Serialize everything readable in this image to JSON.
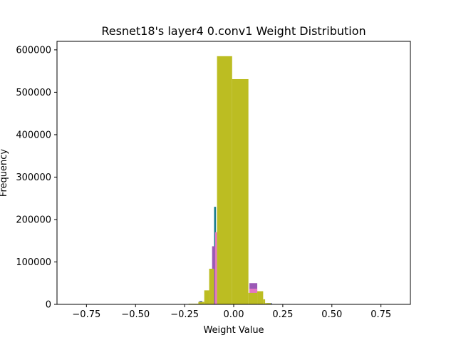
{
  "chart_data": {
    "type": "bar",
    "title": "Resnet18's layer4 0.conv1 Weight Distribution",
    "xlabel": "Weight Value",
    "ylabel": "Frequency",
    "xlim": [
      -0.9,
      0.9
    ],
    "ylim": [
      0,
      620000
    ],
    "xticks": [
      -0.75,
      -0.5,
      -0.25,
      0.0,
      0.25,
      0.5,
      0.75
    ],
    "xtick_labels": [
      "−0.75",
      "−0.50",
      "−0.25",
      "0.00",
      "0.25",
      "0.50",
      "0.75"
    ],
    "yticks": [
      0,
      100000,
      200000,
      300000,
      400000,
      500000,
      600000
    ],
    "ytick_labels": [
      "0",
      "100000",
      "200000",
      "300000",
      "400000",
      "500000",
      "600000"
    ],
    "grid": false,
    "legend": "none",
    "series": [
      {
        "color": "#4a5fc1",
        "bins": [
          {
            "x0": -0.175,
            "x1": -0.16,
            "value": 8000
          },
          {
            "x0": 0.17,
            "x1": 0.195,
            "value": 3000
          }
        ]
      },
      {
        "color": "#1f7f8f",
        "bins": [
          {
            "x0": -0.1,
            "x1": -0.09,
            "value": 230000
          }
        ]
      },
      {
        "color": "#9b59b6",
        "bins": [
          {
            "x0": -0.11,
            "x1": -0.095,
            "value": 137000
          },
          {
            "x0": 0.08,
            "x1": 0.12,
            "value": 50000
          }
        ]
      },
      {
        "color": "#e377c2",
        "bins": [
          {
            "x0": -0.095,
            "x1": -0.085,
            "value": 170000
          },
          {
            "x0": 0.08,
            "x1": 0.12,
            "value": 37000
          }
        ]
      },
      {
        "color": "#bcbd22",
        "bins": [
          {
            "x0": -0.23,
            "x1": -0.18,
            "value": 1500
          },
          {
            "x0": -0.18,
            "x1": -0.15,
            "value": 6000
          },
          {
            "x0": -0.15,
            "x1": -0.125,
            "value": 33000
          },
          {
            "x0": -0.125,
            "x1": -0.1,
            "value": 84000
          },
          {
            "x0": -0.085,
            "x1": -0.008,
            "value": 585000
          },
          {
            "x0": -0.008,
            "x1": 0.075,
            "value": 531000
          },
          {
            "x0": 0.075,
            "x1": 0.12,
            "value": 27000
          },
          {
            "x0": 0.12,
            "x1": 0.15,
            "value": 31000
          },
          {
            "x0": 0.15,
            "x1": 0.16,
            "value": 12000
          },
          {
            "x0": 0.16,
            "x1": 0.19,
            "value": 3000
          }
        ]
      }
    ]
  }
}
